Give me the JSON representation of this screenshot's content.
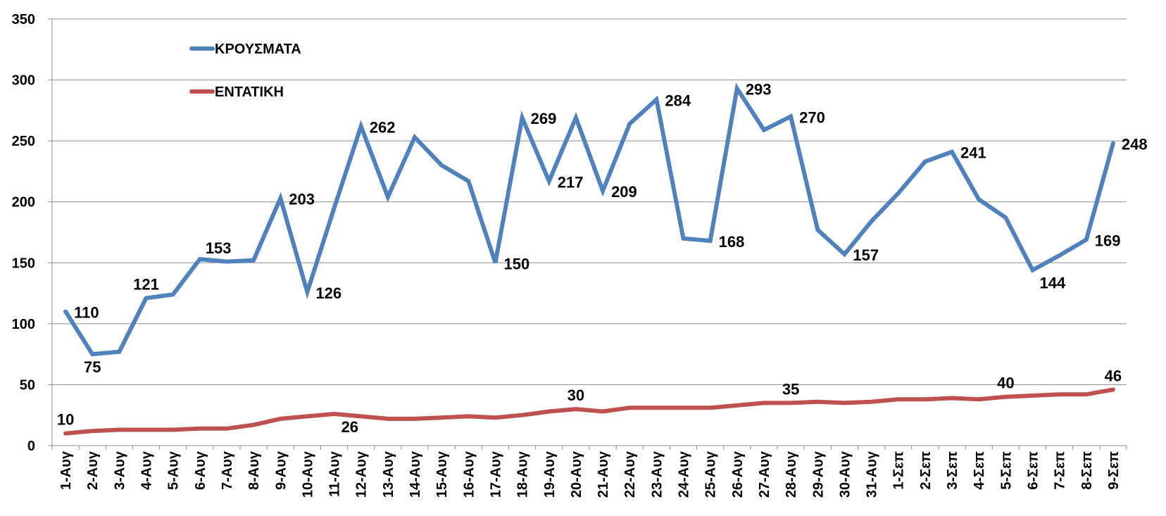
{
  "chart_data": {
    "type": "line",
    "title": "",
    "xlabel": "",
    "ylabel": "",
    "ylim": [
      0,
      350
    ],
    "yticks": [
      0,
      50,
      100,
      150,
      200,
      250,
      300,
      350
    ],
    "grid": "horizontal",
    "legend_position": "top-left",
    "categories": [
      "1-Αυγ",
      "2-Αυγ",
      "3-Αυγ",
      "4-Αυγ",
      "5-Αυγ",
      "6-Αυγ",
      "7-Αυγ",
      "8-Αυγ",
      "9-Αυγ",
      "10-Αυγ",
      "11-Αυγ",
      "12-Αυγ",
      "13-Αυγ",
      "14-Αυγ",
      "15-Αυγ",
      "16-Αυγ",
      "17-Αυγ",
      "18-Αυγ",
      "19-Αυγ",
      "20-Αυγ",
      "21-Αυγ",
      "22-Αυγ",
      "23-Αυγ",
      "24-Αυγ",
      "25-Αυγ",
      "26-Αυγ",
      "27-Αυγ",
      "28-Αυγ",
      "29-Αυγ",
      "30-Αυγ",
      "31-Αυγ",
      "1-Σεπ",
      "2-Σεπ",
      "3-Σεπ",
      "4-Σεπ",
      "5-Σεπ",
      "6-Σεπ",
      "7-Σεπ",
      "8-Σεπ",
      "9-Σεπ"
    ],
    "series": [
      {
        "name": "ΚΡΟΥΣΜΑΤΑ",
        "color": "#4F81BD",
        "values": [
          110,
          75,
          77,
          121,
          124,
          153,
          151,
          152,
          203,
          126,
          195,
          262,
          204,
          253,
          230,
          217,
          150,
          269,
          217,
          269,
          209,
          264,
          284,
          170,
          168,
          293,
          259,
          270,
          177,
          157,
          184,
          207,
          233,
          241,
          202,
          187,
          144,
          156,
          169,
          248
        ],
        "labeled_points": [
          {
            "index": 0,
            "text": "110",
            "pos": "right"
          },
          {
            "index": 1,
            "text": "75",
            "pos": "below"
          },
          {
            "index": 3,
            "text": "121",
            "pos": "above"
          },
          {
            "index": 5,
            "text": "153",
            "pos": "aboveright"
          },
          {
            "index": 8,
            "text": "203",
            "pos": "right"
          },
          {
            "index": 9,
            "text": "126",
            "pos": "right"
          },
          {
            "index": 11,
            "text": "262",
            "pos": "right"
          },
          {
            "index": 16,
            "text": "150",
            "pos": "right"
          },
          {
            "index": 17,
            "text": "269",
            "pos": "right"
          },
          {
            "index": 18,
            "text": "217",
            "pos": "right"
          },
          {
            "index": 20,
            "text": "209",
            "pos": "right"
          },
          {
            "index": 22,
            "text": "284",
            "pos": "right"
          },
          {
            "index": 24,
            "text": "168",
            "pos": "right"
          },
          {
            "index": 25,
            "text": "293",
            "pos": "right"
          },
          {
            "index": 27,
            "text": "270",
            "pos": "right"
          },
          {
            "index": 29,
            "text": "157",
            "pos": "right"
          },
          {
            "index": 33,
            "text": "241",
            "pos": "right"
          },
          {
            "index": 36,
            "text": "144",
            "pos": "belowright"
          },
          {
            "index": 38,
            "text": "169",
            "pos": "right"
          },
          {
            "index": 39,
            "text": "248",
            "pos": "right"
          }
        ]
      },
      {
        "name": "ΕΝΤΑΤΙΚΗ",
        "color": "#C0504D",
        "values": [
          10,
          12,
          13,
          13,
          13,
          14,
          14,
          17,
          22,
          24,
          26,
          24,
          22,
          22,
          23,
          24,
          23,
          25,
          28,
          30,
          28,
          31,
          31,
          31,
          31,
          33,
          35,
          35,
          36,
          35,
          36,
          38,
          38,
          39,
          38,
          40,
          41,
          42,
          42,
          46
        ],
        "labeled_points": [
          {
            "index": 0,
            "text": "10",
            "pos": "above"
          },
          {
            "index": 10,
            "text": "26",
            "pos": "belowright"
          },
          {
            "index": 19,
            "text": "30",
            "pos": "above"
          },
          {
            "index": 27,
            "text": "35",
            "pos": "above"
          },
          {
            "index": 35,
            "text": "40",
            "pos": "above"
          },
          {
            "index": 39,
            "text": "46",
            "pos": "above"
          }
        ]
      }
    ]
  }
}
